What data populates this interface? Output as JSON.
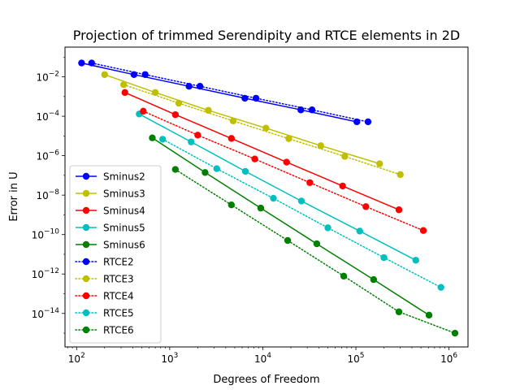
{
  "chart_data": {
    "type": "line",
    "title": "Projection of trimmed Serendipity and RTCE elements in 2D",
    "xlabel": "Degrees of Freedom",
    "ylabel": "Error in U",
    "xscale": "log",
    "yscale": "log",
    "xlim": [
      75,
      1600000
    ],
    "ylim": [
      2e-16,
      0.32
    ],
    "xticks": [
      {
        "value": 100,
        "base": "10",
        "exp": "2"
      },
      {
        "value": 1000,
        "base": "10",
        "exp": "3"
      },
      {
        "value": 10000,
        "base": "10",
        "exp": "4"
      },
      {
        "value": 100000,
        "base": "10",
        "exp": "5"
      },
      {
        "value": 1000000,
        "base": "10",
        "exp": "6"
      }
    ],
    "yticks": [
      {
        "value": 1e-14,
        "base": "10",
        "exp": "−14"
      },
      {
        "value": 1e-12,
        "base": "10",
        "exp": "−12"
      },
      {
        "value": 1e-10,
        "base": "10",
        "exp": "−10"
      },
      {
        "value": 1e-08,
        "base": "10",
        "exp": "−8"
      },
      {
        "value": 1e-06,
        "base": "10",
        "exp": "−6"
      },
      {
        "value": 0.0001,
        "base": "10",
        "exp": "−4"
      },
      {
        "value": 0.01,
        "base": "10",
        "exp": "−2"
      }
    ],
    "grid": false,
    "legend_position": "lower-left",
    "series": [
      {
        "name": "Sminus2",
        "color": "#0000ff",
        "style": "solid",
        "x": [
          113,
          413,
          1613,
          6413,
          25613,
          102413
        ],
        "y": [
          0.05,
          0.013,
          0.0033,
          0.00082,
          0.00021,
          5.2e-05
        ]
      },
      {
        "name": "Sminus3",
        "color": "#bfbf00",
        "style": "solid",
        "x": [
          200,
          700,
          2600,
          10800,
          42000,
          180000
        ],
        "y": [
          0.013,
          0.0016,
          0.0002,
          2.5e-05,
          3.2e-06,
          3.9e-07
        ]
      },
      {
        "name": "Sminus4",
        "color": "#ff0000",
        "style": "solid",
        "x": [
          330,
          1150,
          4600,
          18000,
          72000,
          290000
        ],
        "y": [
          0.0016,
          0.00012,
          7.5e-06,
          4.7e-07,
          2.9e-08,
          1.8e-09
        ]
      },
      {
        "name": "Sminus5",
        "color": "#00bfbf",
        "style": "solid",
        "x": [
          470,
          1700,
          6500,
          26000,
          110000,
          440000
        ],
        "y": [
          0.00013,
          5e-06,
          1.6e-07,
          5e-09,
          1.5e-10,
          5e-12
        ]
      },
      {
        "name": "Sminus6",
        "color": "#008000",
        "style": "solid",
        "x": [
          650,
          2400,
          9500,
          38000,
          155000,
          610000
        ],
        "y": [
          8e-06,
          1.4e-07,
          2.2e-09,
          3.4e-11,
          5.2e-13,
          8.2e-15
        ]
      },
      {
        "name": "RTCE2",
        "color": "#0000ff",
        "style": "dotted",
        "x": [
          145,
          545,
          2113,
          8450,
          33800,
          135000
        ],
        "y": [
          0.05,
          0.013,
          0.0033,
          0.00082,
          0.00021,
          5.2e-05
        ]
      },
      {
        "name": "RTCE3",
        "color": "#bfbf00",
        "style": "dotted",
        "x": [
          320,
          1250,
          4800,
          19000,
          76000,
          300000
        ],
        "y": [
          0.004,
          0.00046,
          5.8e-05,
          7.3e-06,
          9.2e-07,
          1.1e-07
        ]
      },
      {
        "name": "RTCE4",
        "color": "#ff0000",
        "style": "dotted",
        "x": [
          520,
          2000,
          8200,
          32000,
          128000,
          530000
        ],
        "y": [
          0.00018,
          1.1e-05,
          6.8e-07,
          4.3e-08,
          2.6e-09,
          1.6e-10
        ]
      },
      {
        "name": "RTCE5",
        "color": "#00bfbf",
        "style": "dotted",
        "x": [
          840,
          3200,
          13000,
          50000,
          200000,
          820000
        ],
        "y": [
          6.8e-06,
          2.2e-07,
          6.9e-09,
          2.2e-10,
          6.8e-12,
          2.1e-13
        ]
      },
      {
        "name": "RTCE6",
        "color": "#008000",
        "style": "dotted",
        "x": [
          1150,
          4600,
          18500,
          74000,
          290000,
          1160000
        ],
        "y": [
          2e-07,
          3.2e-09,
          5e-11,
          7.8e-13,
          1.2e-14,
          1e-15
        ]
      }
    ]
  }
}
